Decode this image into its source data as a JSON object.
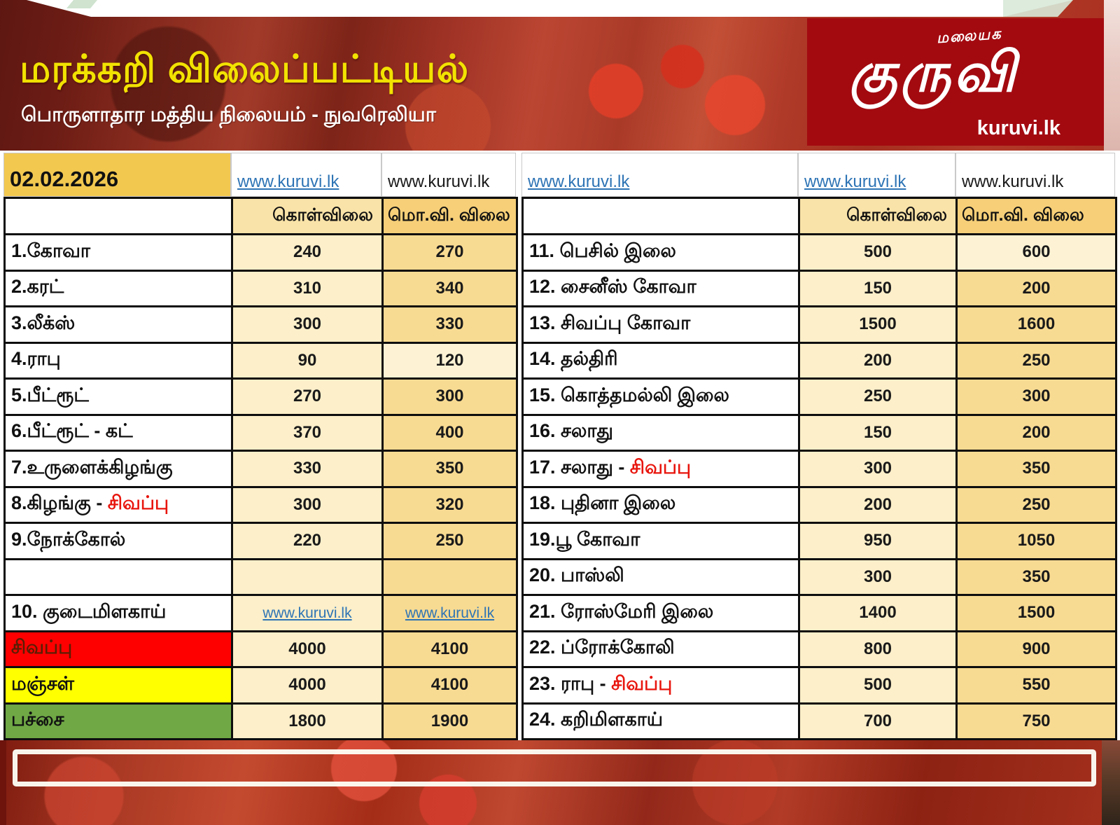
{
  "banner": {
    "title": "மரக்கறி விலைப்பட்டியல்",
    "subtitle": "பொருளாதார மத்திய நிலையம் - நுவரெலியா",
    "logo": {
      "top": "மலையக",
      "main": "குருவி",
      "site": "kuruvi.lk"
    },
    "colors": {
      "title": "#F2E202",
      "logo_bg": "#A30A10"
    }
  },
  "date": "02.02.2026",
  "links": {
    "l1": "www.kuruvi.lk",
    "l2": "www.kuruvi.lk",
    "r1": "www.kuruvi.lk",
    "r2": "www.kuruvi.lk",
    "r3": "www.kuruvi.lk"
  },
  "columns": {
    "buy": "கொள்விலை",
    "wholesale": "மொ.வி. விலை"
  },
  "left_table": {
    "rows": [
      {
        "label": "1.கோவா",
        "buy": "240",
        "ws": "270"
      },
      {
        "label": "2.கரட்",
        "buy": "310",
        "ws": "340"
      },
      {
        "label": "3.லீக்ஸ்",
        "buy": "300",
        "ws": "330"
      },
      {
        "label": "4.ராபு",
        "buy": "90",
        "ws": "120",
        "ws_light": true
      },
      {
        "label": "5.பீட்ரூட்",
        "buy": "270",
        "ws": "300"
      },
      {
        "label": "6.பீட்ரூட் - கட்",
        "buy": "370",
        "ws": "400"
      },
      {
        "label": "7.உருளைக்கிழங்கு",
        "buy": "330",
        "ws": "350"
      },
      {
        "label": "8.கிழங்கு - ",
        "label_red": "சிவப்பு",
        "buy": "300",
        "ws": "320"
      },
      {
        "label": "9.நோக்கோல்",
        "buy": "220",
        "ws": "250"
      },
      {
        "label": "",
        "buy": "",
        "ws": ""
      },
      {
        "label": "10. குடைமிளகாய்",
        "buy_link": "www.kuruvi.lk",
        "ws_link": "www.kuruvi.lk"
      },
      {
        "label": "சிவப்பு",
        "label_bg": "#FF0000",
        "label_color": "#5b1d04",
        "buy": "4000",
        "ws": "4100"
      },
      {
        "label": "மஞ்சள்",
        "label_bg": "#FFFF00",
        "buy": "4000",
        "ws": "4100"
      },
      {
        "label": "பச்சை",
        "label_bg": "#6FA845",
        "buy": "1800",
        "ws": "1900"
      }
    ]
  },
  "right_table": {
    "rows": [
      {
        "label": "11. பெசில் இலை",
        "buy": "500",
        "ws": "600",
        "ws_light": true
      },
      {
        "label": "12. சைனீஸ் கோவா",
        "buy": "150",
        "ws": "200"
      },
      {
        "label": "13. சிவப்பு கோவா",
        "buy": "1500",
        "ws": "1600"
      },
      {
        "label": "14. தல்திரி",
        "buy": "200",
        "ws": "250"
      },
      {
        "label": "15. கொத்தமல்லி இலை",
        "buy": "250",
        "ws": "300"
      },
      {
        "label": "16. சலாது",
        "buy": "150",
        "ws": "200"
      },
      {
        "label": "17. சலாது - ",
        "label_red": "சிவப்பு",
        "buy": "300",
        "ws": "350"
      },
      {
        "label": "18. புதினா இலை",
        "buy": "200",
        "ws": "250"
      },
      {
        "label": "19.பூ கோவா",
        "buy": "950",
        "ws": "1050"
      },
      {
        "label": "20. பாஸ்லி",
        "buy": "300",
        "ws": "350"
      },
      {
        "label": "21. ரோஸ்மேரி இலை",
        "buy": "1400",
        "ws": "1500"
      },
      {
        "label": "22. ப்ரோக்கோலி",
        "buy": "800",
        "ws": "900"
      },
      {
        "label": "23. ராபு - ",
        "label_red": "சிவப்பு",
        "buy": "500",
        "ws": "550"
      },
      {
        "label": "24. கறிமிளகாய்",
        "buy": "700",
        "ws": "750"
      }
    ]
  }
}
